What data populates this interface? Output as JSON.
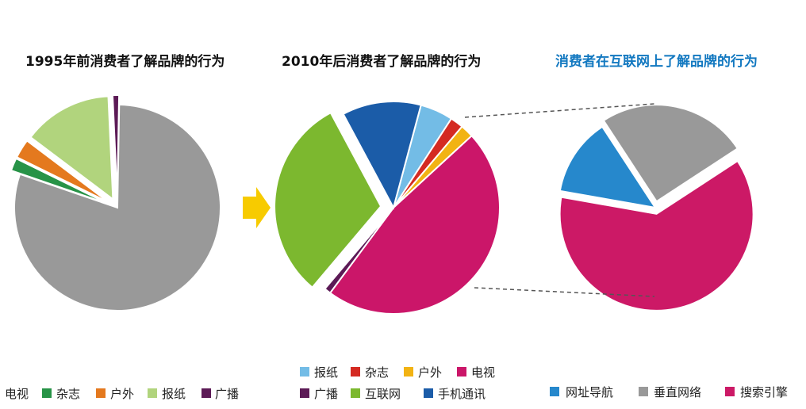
{
  "colors": {
    "tv": "#999999",
    "magazine": "#279347",
    "outdoor": "#E4791E",
    "newspaper_light": "#B1D47D",
    "broadcast": "#5C1A56",
    "newspaper_blue": "#73BCE6",
    "magazine_red": "#D42A22",
    "outdoor_yellow": "#F2B313",
    "tv_magenta": "#CB1669",
    "internet": "#7CB82F",
    "mobile": "#1B5CA8",
    "nav": "#2688CC",
    "vertical": "#999999",
    "search": "#CC1966",
    "arrow": "#F7CB00",
    "title_blue": "#1278C0"
  },
  "chart_data": [
    {
      "type": "pie",
      "title": "1995年前消费者了解品牌的行为",
      "slices": [
        {
          "label": "电视",
          "value": 80,
          "color": "#999999"
        },
        {
          "label": "杂志",
          "value": 2,
          "color": "#279347"
        },
        {
          "label": "户外",
          "value": 3,
          "color": "#E4791E"
        },
        {
          "label": "报纸",
          "value": 14,
          "color": "#B1D47D"
        },
        {
          "label": "广播",
          "value": 1,
          "color": "#5C1A56"
        }
      ],
      "legend": [
        "电视",
        "杂志",
        "户外",
        "报纸",
        "广播"
      ]
    },
    {
      "type": "pie",
      "title": "2010年后消费者了解品牌的行为",
      "slices": [
        {
          "label": "报纸",
          "value": 5,
          "color": "#73BCE6"
        },
        {
          "label": "杂志",
          "value": 2,
          "color": "#D42A22"
        },
        {
          "label": "户外",
          "value": 2,
          "color": "#F2B313"
        },
        {
          "label": "电视",
          "value": 47,
          "color": "#CB1669"
        },
        {
          "label": "广播",
          "value": 1,
          "color": "#5C1A56"
        },
        {
          "label": "互联网",
          "value": 31,
          "color": "#7CB82F"
        },
        {
          "label": "手机通讯",
          "value": 12,
          "color": "#1B5CA8"
        }
      ],
      "legend": [
        "报纸",
        "杂志",
        "户外",
        "电视",
        "广播",
        "互联网",
        "手机通讯"
      ]
    },
    {
      "type": "pie",
      "title": "消费者在互联网上了解品牌的行为",
      "slices": [
        {
          "label": "网址导航",
          "value": 13,
          "color": "#2688CC"
        },
        {
          "label": "垂直网络",
          "value": 25,
          "color": "#999999"
        },
        {
          "label": "搜索引擎",
          "value": 62,
          "color": "#CC1966"
        }
      ],
      "legend": [
        "网址导航",
        "垂直网络",
        "搜索引擎"
      ]
    }
  ]
}
